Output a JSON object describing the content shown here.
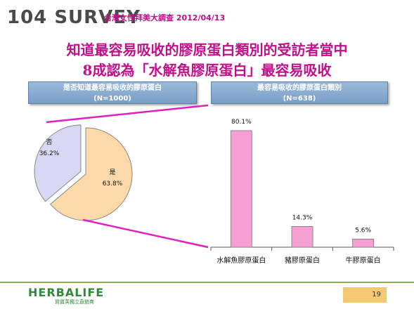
{
  "header": {
    "logo_text": "104 SURVEY",
    "subtitle": "台灣女性拜美大調查 2012/04/13"
  },
  "headline": {
    "line1": "知道最容易吸收的膠原蛋白類別的受訪者當中",
    "line2": "8成認為「水解魚膠原蛋白」最容易吸收"
  },
  "colors": {
    "headline": "#c0108a",
    "pie_yes": "#fbd9a8",
    "pie_no": "#d8d8f4",
    "bar": "#f59fd2",
    "connector": "#e020c0",
    "panel": "#7a9ec8"
  },
  "chart_data": [
    {
      "type": "pie",
      "title": "是否知道最容易吸收的膠原蛋白",
      "subtitle": "(N=1000)",
      "slices": [
        {
          "label": "是",
          "value": 63.8,
          "value_label": "63.8%"
        },
        {
          "label": "否",
          "value": 36.2,
          "value_label": "36.2%"
        }
      ]
    },
    {
      "type": "bar",
      "title": "最容易吸收的膠原蛋白類別",
      "subtitle": "(N=638)",
      "categories": [
        "水解魚膠原蛋白",
        "豬膠原蛋白",
        "牛膠原蛋白"
      ],
      "values": [
        80.1,
        14.3,
        5.6
      ],
      "value_labels": [
        "80.1%",
        "14.3%",
        "5.6%"
      ],
      "ylim": [
        0,
        100
      ]
    }
  ],
  "footer": {
    "brand": "HERBALIFE",
    "tagline": "賀寶芙獨立直銷商",
    "page_number": "19"
  }
}
